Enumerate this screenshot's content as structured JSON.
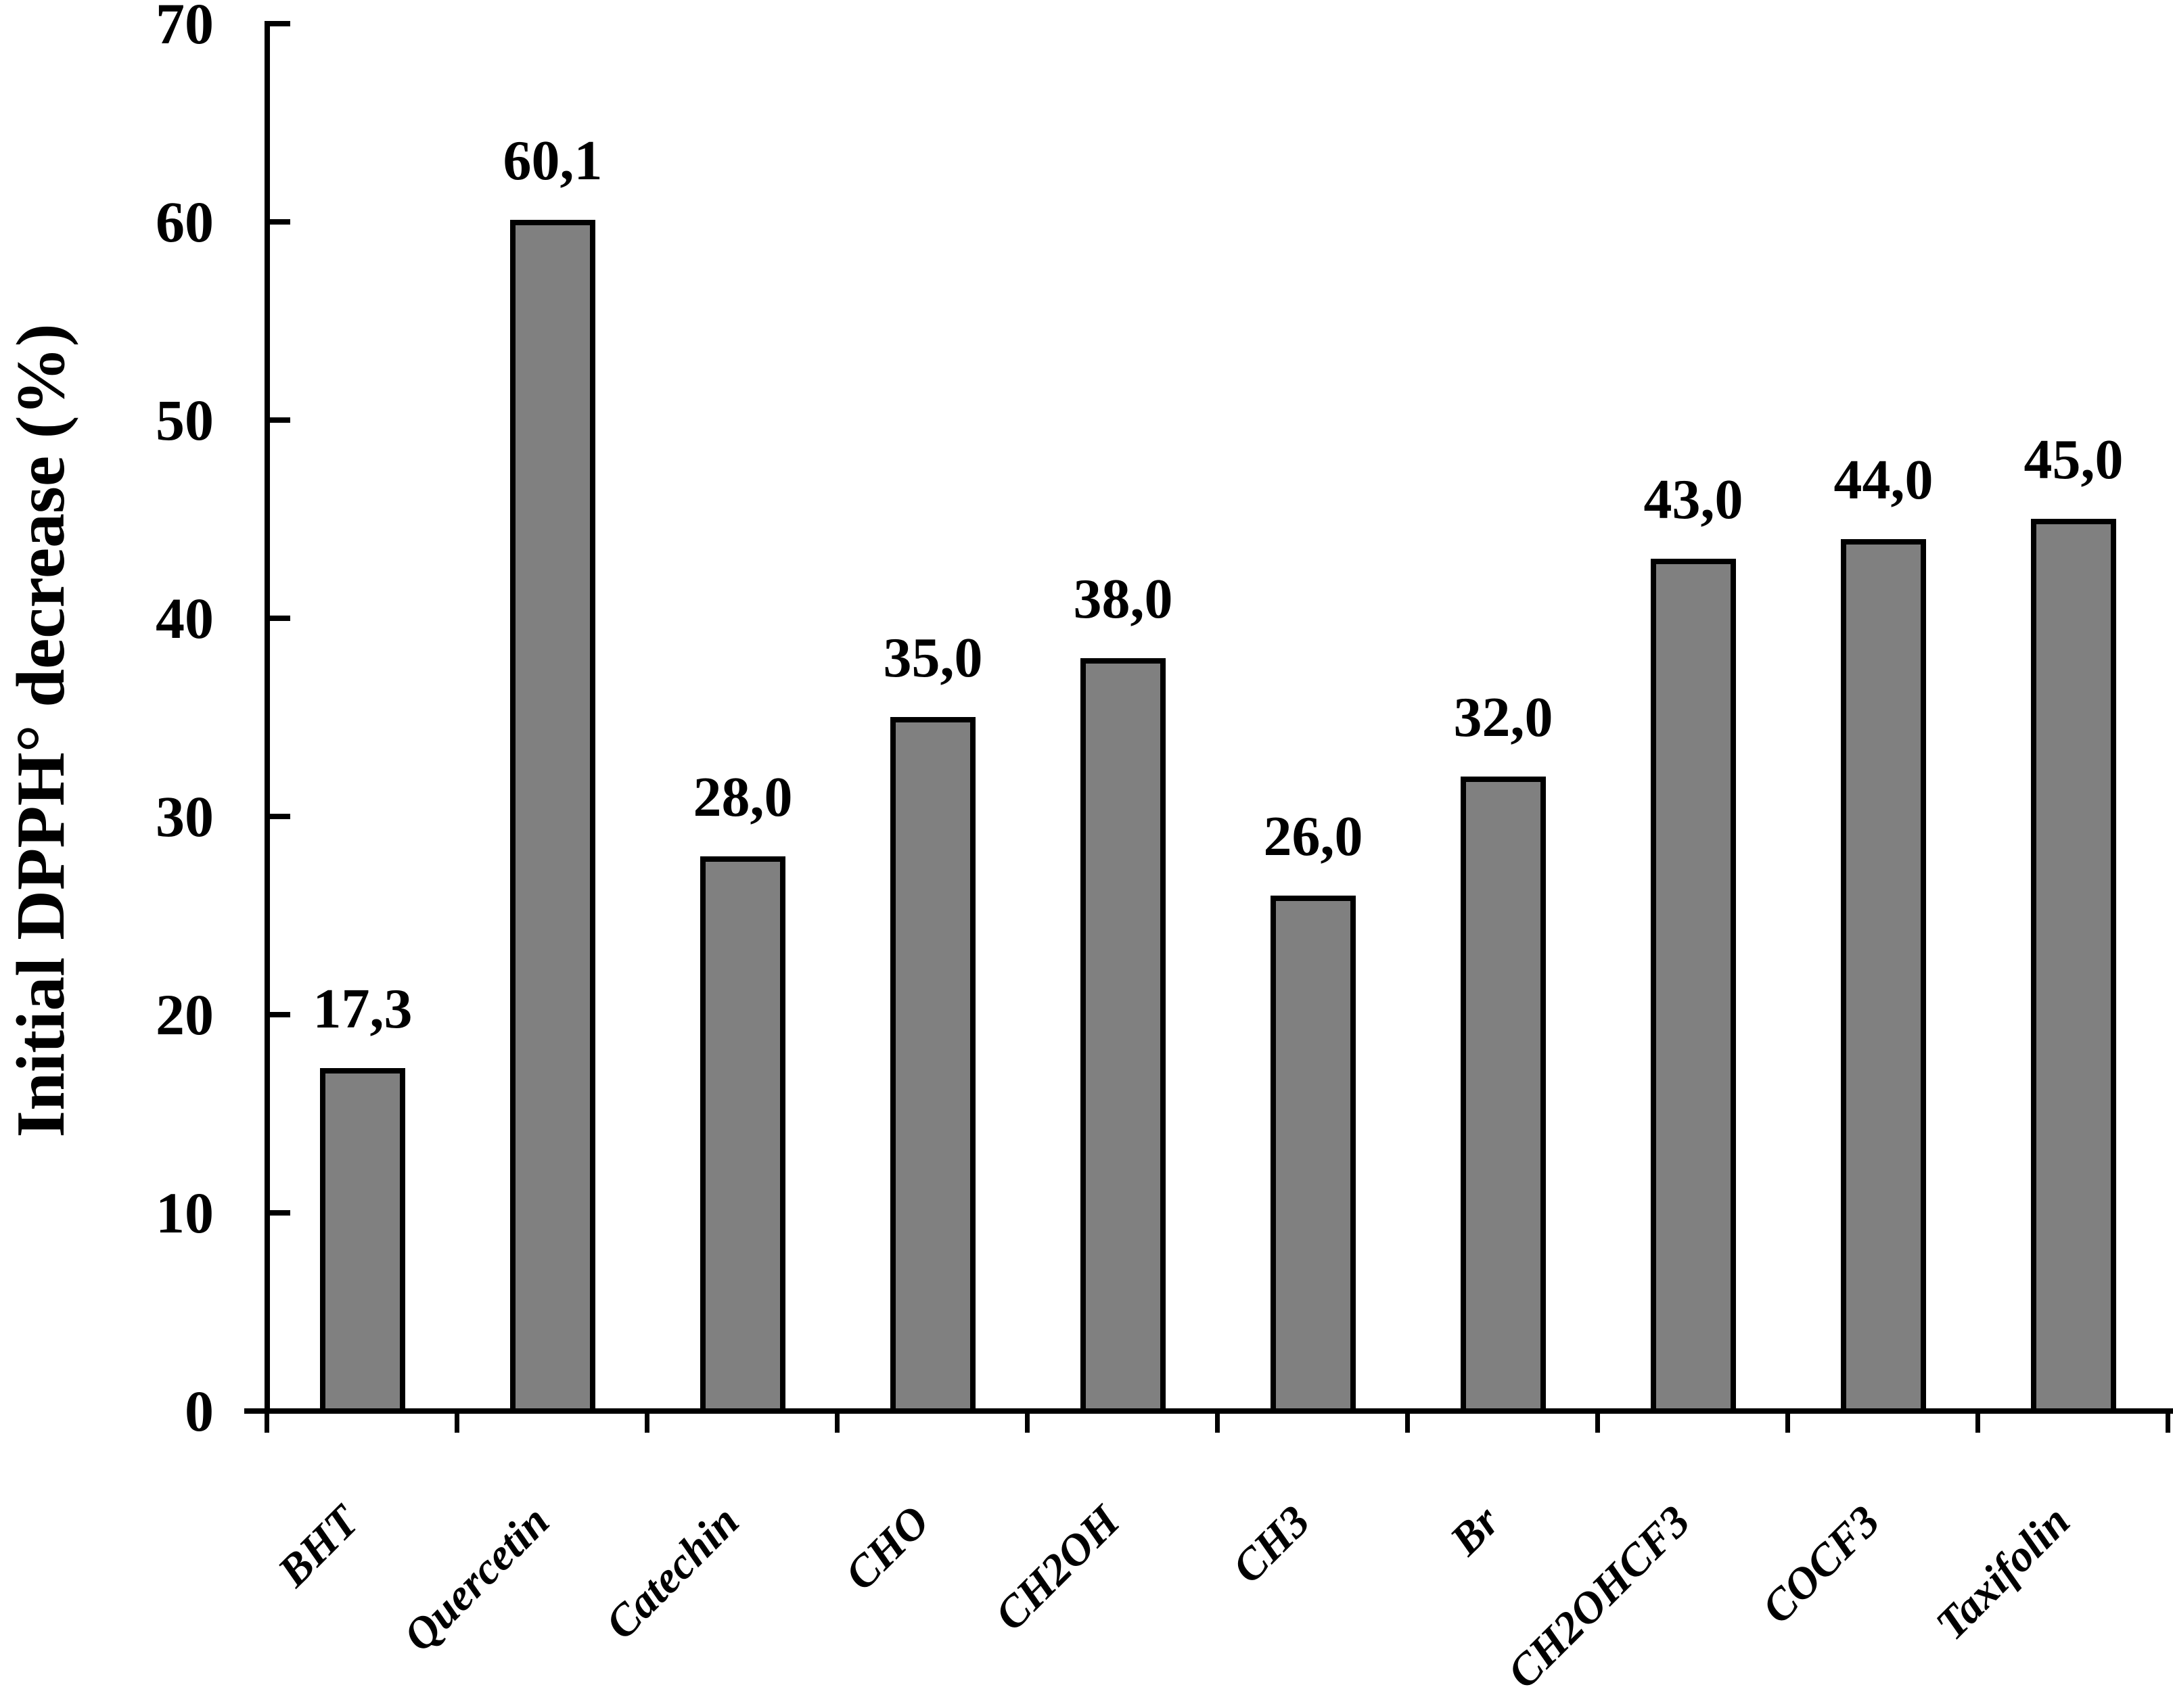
{
  "chart_data": {
    "type": "bar",
    "title": "",
    "ylabel": "Initial DPPH° decrease (%)",
    "xlabel": "",
    "categories": [
      "BHT",
      "Quercetin",
      "Catechin",
      "CHO",
      "CH2OH",
      "CH3",
      "Br",
      "CH2OHCF3",
      "COCF3",
      "Taxifolin"
    ],
    "values": [
      17.3,
      60.1,
      28.0,
      35.0,
      38.0,
      26.0,
      32.0,
      43.0,
      44.0,
      45.0
    ],
    "value_labels": [
      "17,3",
      "60,1",
      "28,0",
      "35,0",
      "38,0",
      "26,0",
      "32,0",
      "43,0",
      "44,0",
      "45,0"
    ],
    "yticks": [
      0,
      10,
      20,
      30,
      40,
      50,
      60,
      70
    ],
    "ylim": [
      0,
      70
    ],
    "grid": false,
    "legend": null,
    "decimal_separator": ",",
    "bar_color": "#808080",
    "bar_border_color": "#000000",
    "axis_color": "#000000",
    "background_color": "#ffffff",
    "x_label_rotation_deg": 45
  }
}
